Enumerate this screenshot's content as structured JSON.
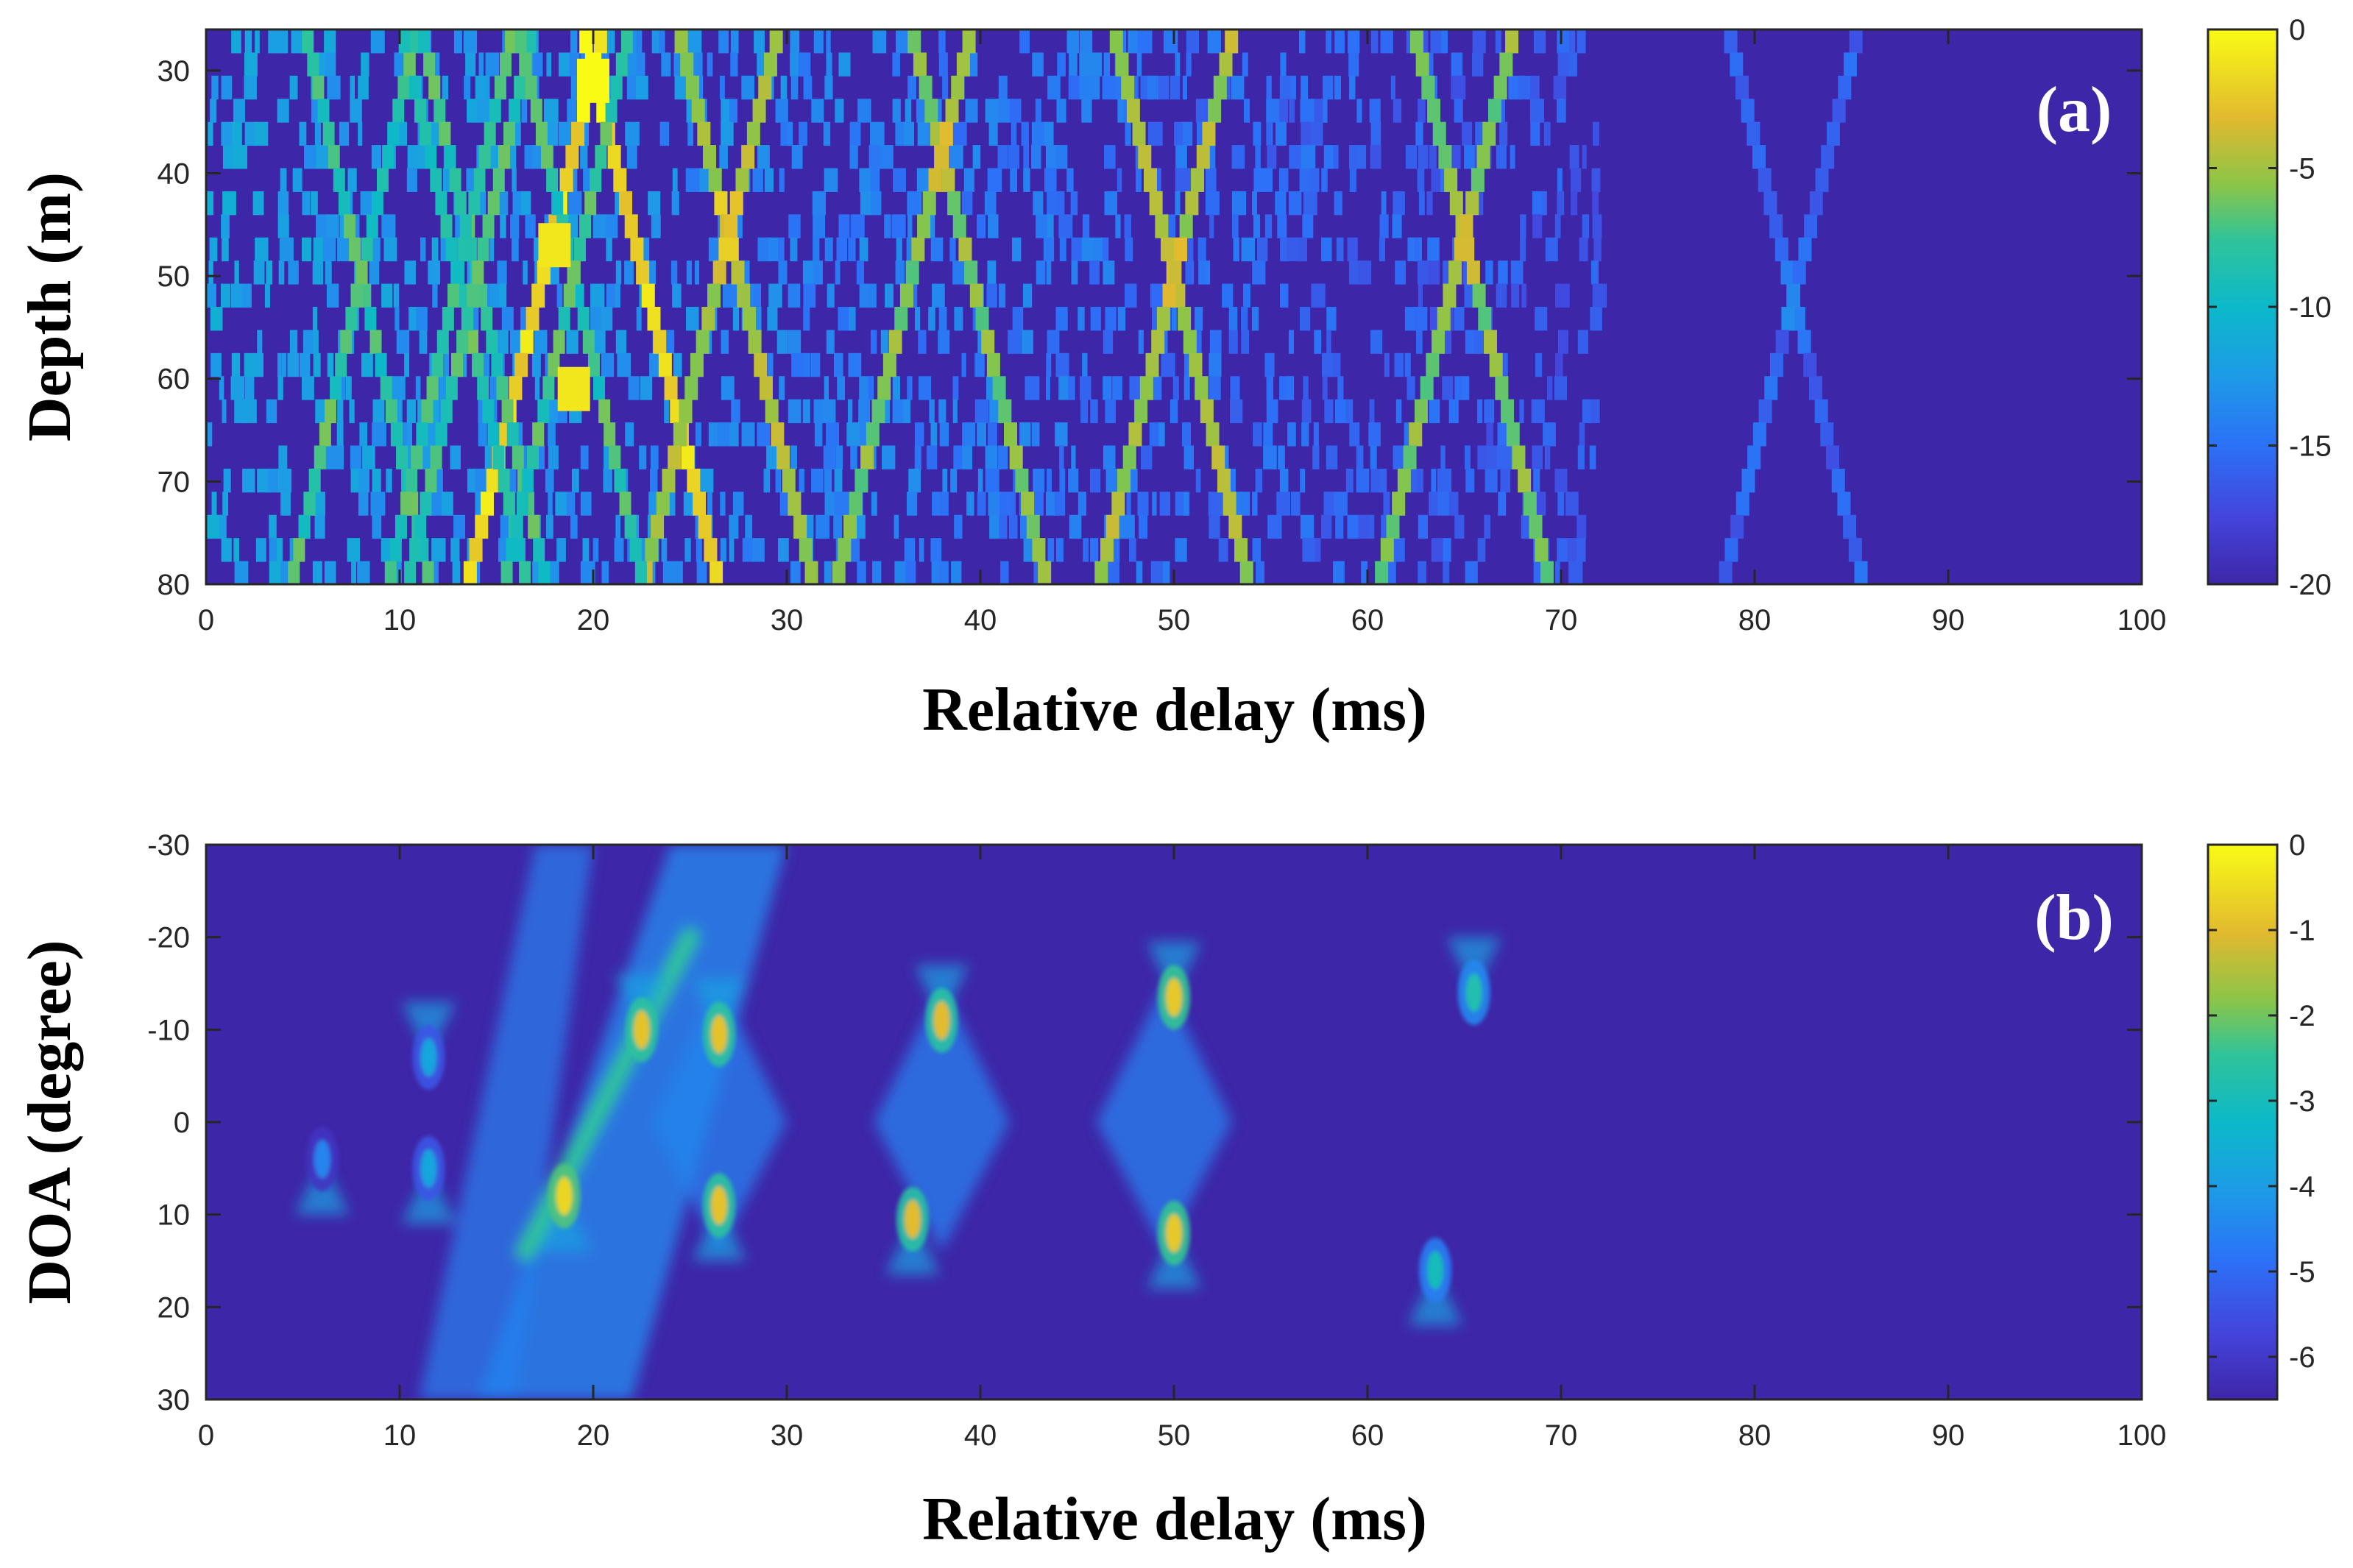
{
  "chart_data": [
    {
      "type": "heatmap",
      "panel_label": "(a)",
      "xlabel": "Relative delay (ms)",
      "ylabel": "Depth (m)",
      "xlim": [
        0,
        100
      ],
      "ylim": [
        26,
        80
      ],
      "y_reversed": true,
      "xticks": [
        0,
        10,
        20,
        30,
        40,
        50,
        60,
        70,
        80,
        90,
        100
      ],
      "yticks": [
        30,
        40,
        50,
        60,
        70,
        80
      ],
      "colorbar": {
        "min": -20,
        "max": 0,
        "ticks": [
          0,
          -5,
          -10,
          -15,
          -20
        ]
      },
      "colormap": "parula",
      "crossings": [
        {
          "x": 20,
          "y": 30,
          "level": 0
        },
        {
          "x": 27,
          "y": 46,
          "level": -3
        },
        {
          "x": 38,
          "y": 38,
          "level": -4
        },
        {
          "x": 50,
          "y": 50,
          "level": -3
        },
        {
          "x": 65,
          "y": 46,
          "level": -4
        },
        {
          "x": 82,
          "y": 52,
          "level": -14
        }
      ],
      "hotspots": [
        {
          "x": 18,
          "y": 47,
          "level": -1
        },
        {
          "x": 19,
          "y": 61,
          "level": -1
        },
        {
          "x": 20,
          "y": 31,
          "level": 0
        }
      ]
    },
    {
      "type": "heatmap",
      "panel_label": "(b)",
      "xlabel": "Relative delay (ms)",
      "ylabel": "DOA (degree)",
      "xlim": [
        0,
        100
      ],
      "ylim": [
        -30,
        30
      ],
      "y_reversed": true,
      "xticks": [
        0,
        10,
        20,
        30,
        40,
        50,
        60,
        70,
        80,
        90,
        100
      ],
      "yticks": [
        -30,
        -20,
        -10,
        0,
        10,
        20,
        30
      ],
      "colorbar": {
        "min": -6.5,
        "max": 0,
        "ticks": [
          0,
          -1,
          -2,
          -3,
          -4,
          -5,
          -6
        ]
      },
      "colormap": "parula",
      "peaks": [
        {
          "x": 18.5,
          "y": 8,
          "level": -0.6
        },
        {
          "x": 22.5,
          "y": -10,
          "level": -0.9
        },
        {
          "x": 26.5,
          "y": -9.5,
          "level": -0.9
        },
        {
          "x": 26.5,
          "y": 9,
          "level": -0.9
        },
        {
          "x": 38,
          "y": -11,
          "level": -1.0
        },
        {
          "x": 36.5,
          "y": 10.5,
          "level": -1.0
        },
        {
          "x": 50,
          "y": -13.5,
          "level": -0.8
        },
        {
          "x": 50,
          "y": 12,
          "level": -0.8
        },
        {
          "x": 65.5,
          "y": -14,
          "level": -2.8
        },
        {
          "x": 63.5,
          "y": 16,
          "level": -3.0
        },
        {
          "x": 11.5,
          "y": -7,
          "level": -3.8
        },
        {
          "x": 11.5,
          "y": 5,
          "level": -3.8
        },
        {
          "x": 6,
          "y": 4,
          "level": -4.5
        }
      ]
    }
  ]
}
